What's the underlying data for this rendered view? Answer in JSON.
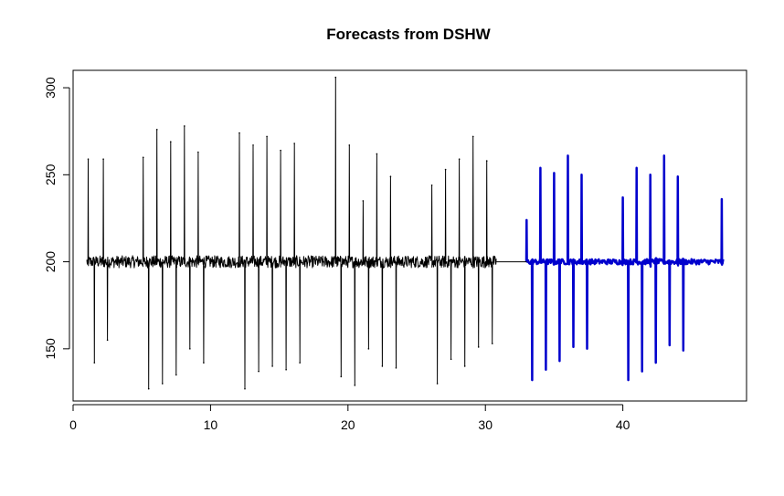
{
  "chart_data": {
    "type": "line",
    "title": "Forecasts from DSHW",
    "xlabel": "",
    "ylabel": "",
    "xlim": [
      0,
      49
    ],
    "ylim": [
      120,
      310
    ],
    "x_ticks": [
      0,
      10,
      20,
      30,
      40
    ],
    "y_ticks": [
      150,
      200,
      250,
      300
    ],
    "grid": false,
    "legend": "none",
    "baseline": 200,
    "series": [
      {
        "role": "historical",
        "color": "#000000",
        "x_range": [
          1.0,
          30.8
        ],
        "spikes": [
          {
            "x": 1.1,
            "y": 259
          },
          {
            "x": 1.55,
            "y": 142
          },
          {
            "x": 2.2,
            "y": 259
          },
          {
            "x": 2.5,
            "y": 155
          },
          {
            "x": 5.1,
            "y": 260
          },
          {
            "x": 5.5,
            "y": 127
          },
          {
            "x": 6.1,
            "y": 276
          },
          {
            "x": 6.5,
            "y": 130
          },
          {
            "x": 7.1,
            "y": 269
          },
          {
            "x": 7.5,
            "y": 135
          },
          {
            "x": 8.1,
            "y": 278
          },
          {
            "x": 8.5,
            "y": 150
          },
          {
            "x": 9.1,
            "y": 263
          },
          {
            "x": 9.5,
            "y": 142
          },
          {
            "x": 12.1,
            "y": 274
          },
          {
            "x": 12.5,
            "y": 127
          },
          {
            "x": 13.1,
            "y": 267
          },
          {
            "x": 13.5,
            "y": 137
          },
          {
            "x": 14.1,
            "y": 272
          },
          {
            "x": 14.5,
            "y": 140
          },
          {
            "x": 15.1,
            "y": 264
          },
          {
            "x": 15.5,
            "y": 138
          },
          {
            "x": 16.1,
            "y": 268
          },
          {
            "x": 16.5,
            "y": 142
          },
          {
            "x": 19.1,
            "y": 306
          },
          {
            "x": 19.5,
            "y": 134
          },
          {
            "x": 20.1,
            "y": 267
          },
          {
            "x": 20.5,
            "y": 129
          },
          {
            "x": 21.1,
            "y": 235
          },
          {
            "x": 21.5,
            "y": 150
          },
          {
            "x": 22.1,
            "y": 262
          },
          {
            "x": 22.5,
            "y": 140
          },
          {
            "x": 23.1,
            "y": 249
          },
          {
            "x": 23.5,
            "y": 139
          },
          {
            "x": 26.1,
            "y": 244
          },
          {
            "x": 26.5,
            "y": 130
          },
          {
            "x": 27.1,
            "y": 253
          },
          {
            "x": 27.5,
            "y": 144
          },
          {
            "x": 28.1,
            "y": 259
          },
          {
            "x": 28.5,
            "y": 140
          },
          {
            "x": 29.1,
            "y": 272
          },
          {
            "x": 29.5,
            "y": 151
          },
          {
            "x": 30.1,
            "y": 258
          },
          {
            "x": 30.5,
            "y": 153
          }
        ]
      },
      {
        "role": "forecast",
        "color": "#0000cd",
        "x_range": [
          33.0,
          47.3
        ],
        "spikes": [
          {
            "x": 33.0,
            "y": 224
          },
          {
            "x": 33.4,
            "y": 132
          },
          {
            "x": 34.0,
            "y": 254
          },
          {
            "x": 34.4,
            "y": 138
          },
          {
            "x": 35.0,
            "y": 251
          },
          {
            "x": 35.4,
            "y": 143
          },
          {
            "x": 36.0,
            "y": 261
          },
          {
            "x": 36.4,
            "y": 151
          },
          {
            "x": 37.0,
            "y": 250
          },
          {
            "x": 37.4,
            "y": 150
          },
          {
            "x": 40.0,
            "y": 237
          },
          {
            "x": 40.4,
            "y": 132
          },
          {
            "x": 41.0,
            "y": 254
          },
          {
            "x": 41.4,
            "y": 137
          },
          {
            "x": 42.0,
            "y": 250
          },
          {
            "x": 42.4,
            "y": 142
          },
          {
            "x": 43.0,
            "y": 261
          },
          {
            "x": 43.4,
            "y": 152
          },
          {
            "x": 44.0,
            "y": 249
          },
          {
            "x": 44.4,
            "y": 149
          },
          {
            "x": 47.2,
            "y": 236
          }
        ]
      }
    ]
  }
}
